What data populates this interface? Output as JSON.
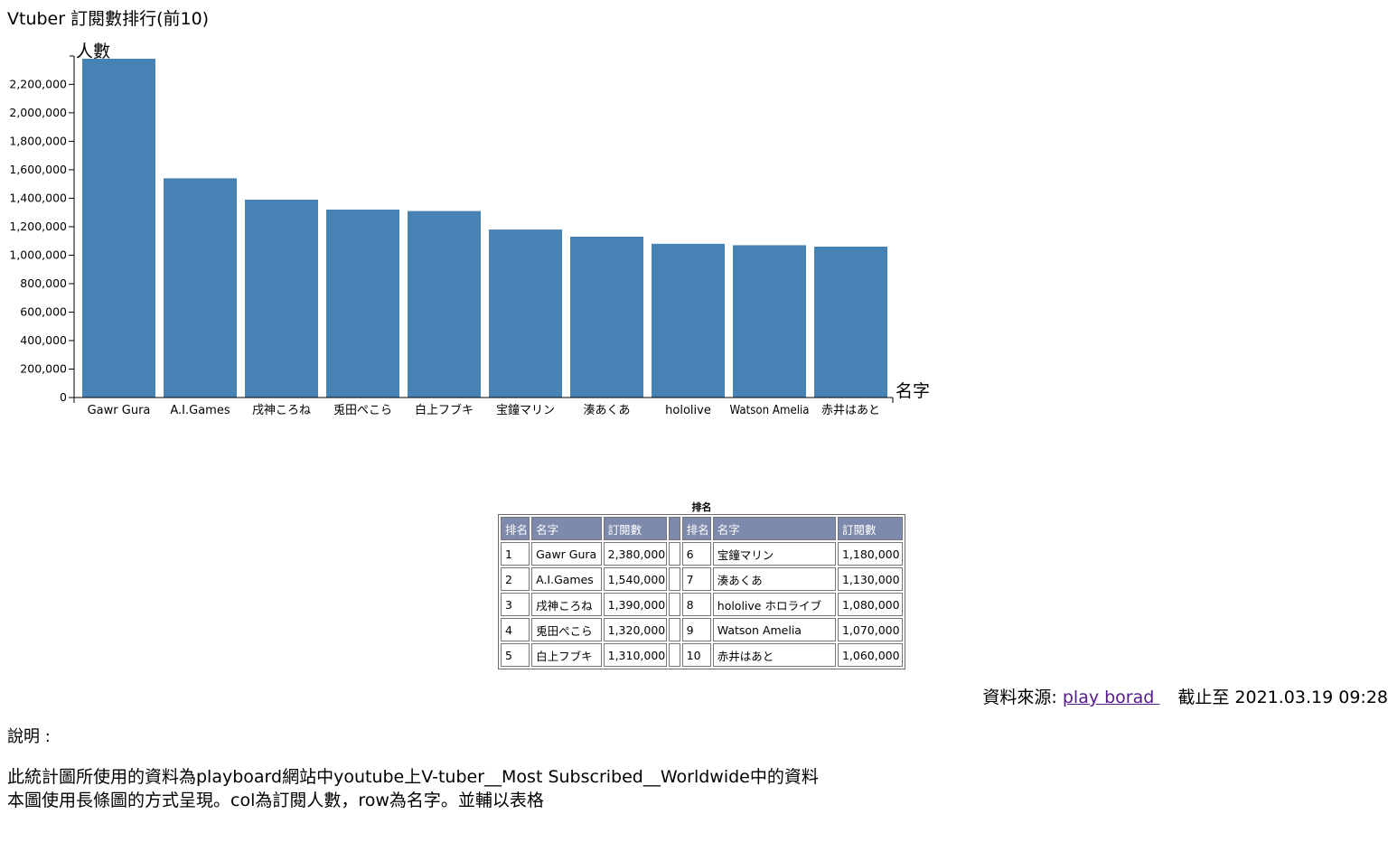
{
  "page": {
    "title": "Vtuber 訂閱數排行(前10)",
    "source_label": "資料來源: ",
    "source_link": "play borad ",
    "as_of": "截止至 2021.03.19 09:28",
    "description_heading": "說明 :",
    "description_lines": [
      "此統計圖所使用的資料為playboard網站中youtube上V-tuber__Most Subscribed__Worldwide中的資料",
      "本圖使用長條圖的方式呈現。col為訂閱人數，row為名字。並輔以表格"
    ]
  },
  "chart_data": {
    "type": "bar",
    "title": "Vtuber 訂閱數排行(前10)",
    "xlabel": "名字",
    "ylabel": "人數",
    "categories": [
      "Gawr Gura",
      "A.I.Games",
      "戌神ころね",
      "兎田ぺこら",
      "白上フブキ",
      "宝鐘マリン",
      "湊あくあ",
      "hololive",
      "Watson Amelia",
      "赤井はあと"
    ],
    "values": [
      2380000,
      1540000,
      1390000,
      1320000,
      1310000,
      1180000,
      1130000,
      1080000,
      1070000,
      1060000
    ],
    "yticks": [
      0,
      200000,
      400000,
      600000,
      800000,
      1000000,
      1200000,
      1400000,
      1600000,
      1800000,
      2000000,
      2200000
    ],
    "ylim": [
      0,
      2400000
    ],
    "bar_color": "#4682b4",
    "grid": false,
    "legend": "none"
  },
  "table": {
    "caption": "排名",
    "header_color": "#7e8aad",
    "headers": [
      "排名",
      "名字",
      "訂閱數",
      "",
      "排名",
      "名字",
      "訂閱數"
    ],
    "rows": [
      [
        "1",
        "Gawr Gura",
        "2,380,000",
        "",
        "6",
        "宝鐘マリン",
        "1,180,000"
      ],
      [
        "2",
        "A.I.Games",
        "1,540,000",
        "",
        "7",
        "湊あくあ",
        "1,130,000"
      ],
      [
        "3",
        "戌神ころね",
        "1,390,000",
        "",
        "8",
        "hololive ホロライブ",
        "1,080,000"
      ],
      [
        "4",
        "兎田ぺこら",
        "1,320,000",
        "",
        "9",
        "Watson Amelia",
        "1,070,000"
      ],
      [
        "5",
        "白上フブキ",
        "1,310,000",
        "",
        "10",
        "赤井はあと",
        "1,060,000"
      ]
    ]
  }
}
